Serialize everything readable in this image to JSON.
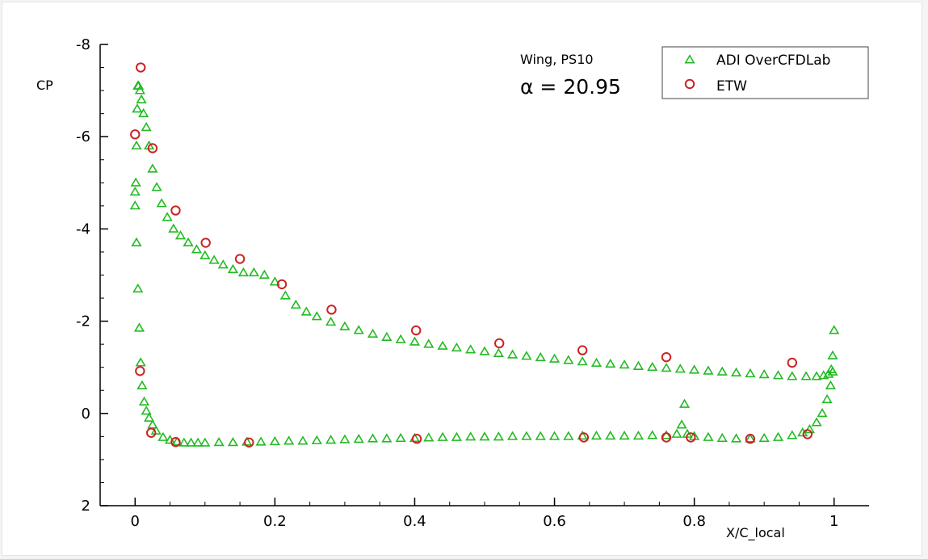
{
  "chart_data": {
    "type": "scatter",
    "title": "",
    "xlabel": "X/C_local",
    "ylabel": "CP",
    "xlim": [
      -0.05,
      1.05
    ],
    "ylim": [
      2,
      -8
    ],
    "y_inverted": true,
    "grid": false,
    "legend_position": "top-right",
    "x_ticks": [
      "0",
      "0.2",
      "0.4",
      "0.6",
      "0.8",
      "1"
    ],
    "y_ticks": [
      "-8",
      "-6",
      "-4",
      "-2",
      "0",
      "2"
    ],
    "annotations": {
      "line1": "Wing, PS10",
      "line2": "α = 20.95"
    },
    "series": [
      {
        "name": "ADI OverCFDLab",
        "marker": "triangle",
        "color": "#22bb22",
        "upper_x": [
          0.0,
          0.001,
          0.002,
          0.003,
          0.004,
          0.005,
          0.007,
          0.009,
          0.012,
          0.016,
          0.02,
          0.025,
          0.031,
          0.038,
          0.046,
          0.055,
          0.065,
          0.076,
          0.088,
          0.1,
          0.113,
          0.126,
          0.14,
          0.155,
          0.17,
          0.185,
          0.2,
          0.215,
          0.23,
          0.245,
          0.26,
          0.28,
          0.3,
          0.32,
          0.34,
          0.36,
          0.38,
          0.4,
          0.42,
          0.44,
          0.46,
          0.48,
          0.5,
          0.52,
          0.54,
          0.56,
          0.58,
          0.6,
          0.62,
          0.64,
          0.66,
          0.68,
          0.7,
          0.72,
          0.74,
          0.76,
          0.78,
          0.8,
          0.82,
          0.84,
          0.86,
          0.88,
          0.9,
          0.92,
          0.94,
          0.96,
          0.975,
          0.985,
          0.992,
          0.996,
          0.998,
          1.0
        ],
        "upper_y": [
          -4.5,
          -5.0,
          -5.8,
          -6.6,
          -7.1,
          -7.1,
          -7.0,
          -6.8,
          -6.5,
          -6.2,
          -5.8,
          -5.3,
          -4.9,
          -4.55,
          -4.25,
          -4.0,
          -3.85,
          -3.7,
          -3.55,
          -3.42,
          -3.32,
          -3.22,
          -3.12,
          -3.05,
          -3.05,
          -3.0,
          -2.85,
          -2.55,
          -2.35,
          -2.2,
          -2.1,
          -1.98,
          -1.88,
          -1.8,
          -1.72,
          -1.65,
          -1.6,
          -1.55,
          -1.5,
          -1.46,
          -1.42,
          -1.38,
          -1.34,
          -1.3,
          -1.27,
          -1.24,
          -1.21,
          -1.18,
          -1.15,
          -1.12,
          -1.09,
          -1.07,
          -1.05,
          -1.02,
          -1.0,
          -0.98,
          -0.96,
          -0.94,
          -0.92,
          -0.9,
          -0.88,
          -0.86,
          -0.84,
          -0.82,
          -0.8,
          -0.8,
          -0.8,
          -0.82,
          -0.85,
          -0.95,
          -1.25,
          -1.8
        ],
        "lower_x": [
          0.0,
          0.002,
          0.004,
          0.006,
          0.008,
          0.01,
          0.013,
          0.016,
          0.02,
          0.025,
          0.03,
          0.04,
          0.05,
          0.06,
          0.07,
          0.08,
          0.09,
          0.1,
          0.12,
          0.14,
          0.16,
          0.18,
          0.2,
          0.22,
          0.24,
          0.26,
          0.28,
          0.3,
          0.32,
          0.34,
          0.36,
          0.38,
          0.4,
          0.42,
          0.44,
          0.46,
          0.48,
          0.5,
          0.52,
          0.54,
          0.56,
          0.58,
          0.6,
          0.62,
          0.64,
          0.66,
          0.68,
          0.7,
          0.72,
          0.74,
          0.76,
          0.775,
          0.782,
          0.786,
          0.79,
          0.8,
          0.82,
          0.84,
          0.86,
          0.88,
          0.9,
          0.92,
          0.94,
          0.955,
          0.965,
          0.975,
          0.983,
          0.99,
          0.995,
          0.998
        ],
        "lower_y": [
          -4.8,
          -3.7,
          -2.7,
          -1.85,
          -1.1,
          -0.6,
          -0.25,
          -0.05,
          0.1,
          0.25,
          0.38,
          0.52,
          0.58,
          0.62,
          0.64,
          0.64,
          0.64,
          0.64,
          0.63,
          0.63,
          0.62,
          0.62,
          0.61,
          0.6,
          0.6,
          0.59,
          0.58,
          0.57,
          0.56,
          0.55,
          0.55,
          0.54,
          0.54,
          0.53,
          0.52,
          0.52,
          0.51,
          0.51,
          0.51,
          0.5,
          0.5,
          0.5,
          0.5,
          0.5,
          0.49,
          0.49,
          0.49,
          0.49,
          0.49,
          0.48,
          0.48,
          0.45,
          0.25,
          -0.2,
          0.45,
          0.5,
          0.52,
          0.54,
          0.55,
          0.55,
          0.54,
          0.52,
          0.48,
          0.42,
          0.35,
          0.2,
          0.0,
          -0.3,
          -0.6,
          -0.9
        ]
      },
      {
        "name": "ETW",
        "marker": "circle",
        "color": "#cc2222",
        "x": [
          0.008,
          0.0,
          0.025,
          0.058,
          0.101,
          0.15,
          0.21,
          0.281,
          0.402,
          0.521,
          0.64,
          0.76,
          0.94,
          0.007,
          0.023,
          0.058,
          0.163,
          0.403,
          0.642,
          0.76,
          0.795,
          0.88,
          0.962
        ],
        "y": [
          -7.5,
          -6.05,
          -5.75,
          -4.4,
          -3.7,
          -3.35,
          -2.8,
          -2.25,
          -1.8,
          -1.52,
          -1.37,
          -1.22,
          -1.1,
          -0.92,
          0.42,
          0.62,
          0.63,
          0.55,
          0.52,
          0.52,
          0.52,
          0.55,
          0.45
        ]
      }
    ]
  }
}
